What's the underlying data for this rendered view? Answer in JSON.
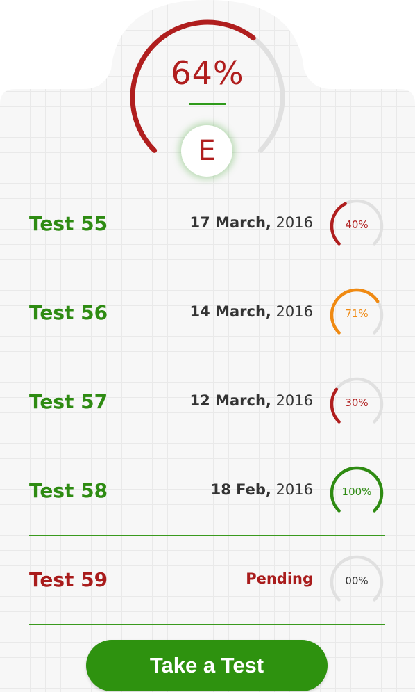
{
  "summary": {
    "score_label": "64%",
    "score_fraction": 0.64,
    "grade": "E",
    "gauge_color": "#b01e1e"
  },
  "tests": [
    {
      "name": "Test 55",
      "date_bold": "17 March,",
      "date_rest": " 2016",
      "percent_label": "40%",
      "fraction": 0.4,
      "color": "#b01e1e",
      "pending": false
    },
    {
      "name": "Test 56",
      "date_bold": "14 March,",
      "date_rest": " 2016",
      "percent_label": "71%",
      "fraction": 0.71,
      "color": "#f08a12",
      "pending": false
    },
    {
      "name": "Test 57",
      "date_bold": "12 March,",
      "date_rest": " 2016",
      "percent_label": "30%",
      "fraction": 0.3,
      "color": "#b01e1e",
      "pending": false
    },
    {
      "name": "Test 58",
      "date_bold": "18 Feb,",
      "date_rest": " 2016",
      "percent_label": "100%",
      "fraction": 1.0,
      "color": "#2e8b12",
      "pending": false
    },
    {
      "name": "Test 59",
      "date_bold": "Pending",
      "date_rest": "",
      "percent_label": "00%",
      "fraction": 0.0,
      "color": "#333333",
      "pending": true
    }
  ],
  "actions": {
    "take_test_label": "Take a Test"
  }
}
